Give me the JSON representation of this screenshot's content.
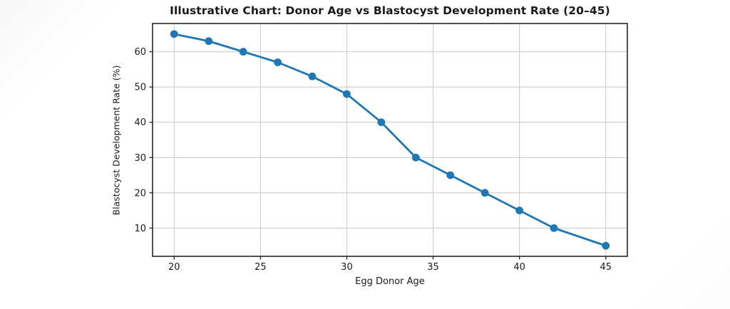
{
  "page": {
    "background_color": "#fdfdfd"
  },
  "chart_data": {
    "type": "line",
    "title": "Illustrative Chart: Donor Age vs Blastocyst Development Rate (20–45)",
    "xlabel": "Egg Donor Age",
    "ylabel": "Blastocyst Development Rate (%)",
    "x": [
      20,
      22,
      24,
      26,
      28,
      30,
      32,
      34,
      36,
      38,
      40,
      42,
      45
    ],
    "series": [
      {
        "name": "Blastocyst Development Rate",
        "values": [
          65,
          63,
          60,
          57,
          53,
          48,
          40,
          30,
          25,
          20,
          15,
          10,
          5
        ]
      }
    ],
    "xticks": [
      20,
      25,
      30,
      35,
      40,
      45
    ],
    "yticks": [
      10,
      20,
      30,
      40,
      50,
      60
    ],
    "xlim": [
      18.75,
      46.25
    ],
    "ylim": [
      2,
      68
    ],
    "grid": true,
    "legend_position": "none",
    "line_color": "#1f77b4",
    "marker": "circle",
    "marker_color": "#1f77b4",
    "grid_color": "#cccccc",
    "spine_color": "#333333",
    "tick_color": "#333333",
    "plot_background": "#ffffff"
  }
}
